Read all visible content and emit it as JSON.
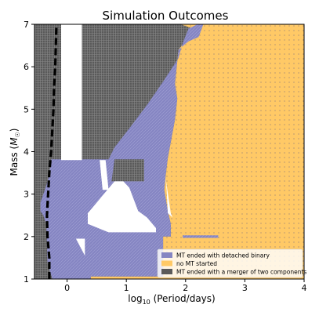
{
  "chart_data": {
    "type": "heatmap",
    "title": "Simulation Outcomes",
    "xlabel": "log",
    "xlabel_sub": "10",
    "xlabel_rest": " (Period/days)",
    "ylabel": "Mass (",
    "ylabel_sym": "M",
    "ylabel_sub": "☉",
    "ylabel_close": ")",
    "xlim": [
      -0.55,
      4.0
    ],
    "ylim": [
      1.0,
      7.0
    ],
    "xticks": [
      0,
      1,
      2,
      3,
      4
    ],
    "yticks": [
      1,
      2,
      3,
      4,
      5,
      6,
      7
    ],
    "legend_position": "lower-right",
    "legend": [
      {
        "label": "MT ended with detached binary",
        "color": "#8585c2"
      },
      {
        "label": "no MT started",
        "color": "#ffc966"
      },
      {
        "label": "MT ended with a merger of two components",
        "color": "#5a5a5a"
      }
    ],
    "regions": {
      "merger": [
        [
          -0.55,
          1.0
        ],
        [
          -0.55,
          7.0
        ],
        [
          2.35,
          7.0
        ],
        [
          2.35,
          1.0
        ]
      ],
      "no_mt": [
        [
          1.92,
          7.0
        ],
        [
          4.0,
          7.0
        ],
        [
          4.0,
          1.0
        ],
        [
          0.4,
          1.0
        ],
        [
          0.4,
          1.06
        ],
        [
          1.62,
          1.06
        ],
        [
          1.62,
          2.0
        ],
        [
          1.75,
          2.0
        ],
        [
          1.75,
          2.3
        ],
        [
          1.7,
          2.6
        ],
        [
          1.64,
          3.1
        ],
        [
          1.66,
          3.4
        ],
        [
          1.7,
          3.85
        ],
        [
          1.82,
          4.75
        ],
        [
          1.86,
          5.25
        ],
        [
          1.82,
          5.6
        ],
        [
          1.88,
          6.4
        ],
        [
          2.05,
          6.7
        ],
        [
          2.16,
          6.88
        ]
      ],
      "detached": [
        [
          -0.25,
          1.0
        ],
        [
          -0.33,
          1.4
        ],
        [
          -0.35,
          2.3
        ],
        [
          -0.4,
          2.5
        ],
        [
          -0.45,
          2.6
        ],
        [
          -0.45,
          2.8
        ],
        [
          -0.35,
          3.2
        ],
        [
          -0.3,
          3.45
        ],
        [
          -0.27,
          3.82
        ],
        [
          0.15,
          3.82
        ],
        [
          0.4,
          3.82
        ],
        [
          0.7,
          3.82
        ],
        [
          0.8,
          4.1
        ],
        [
          1.05,
          4.55
        ],
        [
          1.35,
          5.1
        ],
        [
          1.62,
          5.65
        ],
        [
          1.88,
          6.2
        ],
        [
          1.95,
          6.55
        ],
        [
          2.05,
          6.9
        ],
        [
          2.2,
          7.0
        ],
        [
          2.3,
          7.0
        ],
        [
          2.22,
          6.7
        ],
        [
          2.05,
          6.6
        ],
        [
          1.88,
          6.4
        ],
        [
          1.82,
          5.6
        ],
        [
          1.86,
          5.25
        ],
        [
          1.82,
          4.75
        ],
        [
          1.7,
          3.85
        ],
        [
          1.66,
          3.4
        ],
        [
          1.64,
          3.1
        ],
        [
          1.7,
          2.6
        ],
        [
          1.75,
          2.3
        ],
        [
          1.75,
          2.0
        ],
        [
          1.62,
          2.0
        ],
        [
          1.62,
          1.06
        ],
        [
          0.4,
          1.06
        ],
        [
          0.4,
          1.0
        ]
      ],
      "dark_block": [
        [
          0.75,
          3.3
        ],
        [
          0.8,
          3.82
        ],
        [
          1.3,
          3.82
        ],
        [
          1.3,
          3.3
        ]
      ],
      "white_bar": [
        [
          -0.1,
          7.0
        ],
        [
          0.25,
          7.0
        ],
        [
          0.25,
          3.8
        ],
        [
          -0.1,
          3.8
        ]
      ],
      "white_notch": [
        [
          0.55,
          3.8
        ],
        [
          0.6,
          3.1
        ],
        [
          0.7,
          3.1
        ],
        [
          0.65,
          3.8
        ]
      ],
      "white_inner": [
        [
          0.35,
          2.55
        ],
        [
          0.8,
          3.3
        ],
        [
          0.95,
          3.3
        ],
        [
          1.05,
          3.15
        ],
        [
          1.2,
          2.6
        ],
        [
          1.35,
          2.45
        ],
        [
          1.5,
          2.2
        ],
        [
          1.5,
          2.1
        ],
        [
          0.7,
          2.1
        ],
        [
          0.35,
          2.3
        ]
      ],
      "white_wedge": [
        [
          0.15,
          1.95
        ],
        [
          0.3,
          1.55
        ],
        [
          0.3,
          1.95
        ]
      ],
      "white_right": [
        [
          1.66,
          3.4
        ],
        [
          1.75,
          2.55
        ],
        [
          1.78,
          2.45
        ],
        [
          1.7,
          2.55
        ],
        [
          1.68,
          3.1
        ]
      ],
      "purple_strip": [
        [
          1.95,
          2.03
        ],
        [
          2.55,
          2.03
        ],
        [
          2.55,
          1.97
        ],
        [
          1.95,
          1.97
        ]
      ]
    },
    "boundary_line": {
      "style": "dashed",
      "color": "#000000",
      "points": [
        [
          -0.3,
          1.0
        ],
        [
          -0.3,
          1.5
        ],
        [
          -0.33,
          2.0
        ],
        [
          -0.34,
          2.5
        ],
        [
          -0.32,
          3.0
        ],
        [
          -0.3,
          3.5
        ],
        [
          -0.27,
          4.0
        ],
        [
          -0.25,
          4.5
        ],
        [
          -0.23,
          5.0
        ],
        [
          -0.22,
          5.5
        ],
        [
          -0.2,
          6.0
        ],
        [
          -0.19,
          6.5
        ],
        [
          -0.18,
          7.0
        ]
      ]
    }
  }
}
